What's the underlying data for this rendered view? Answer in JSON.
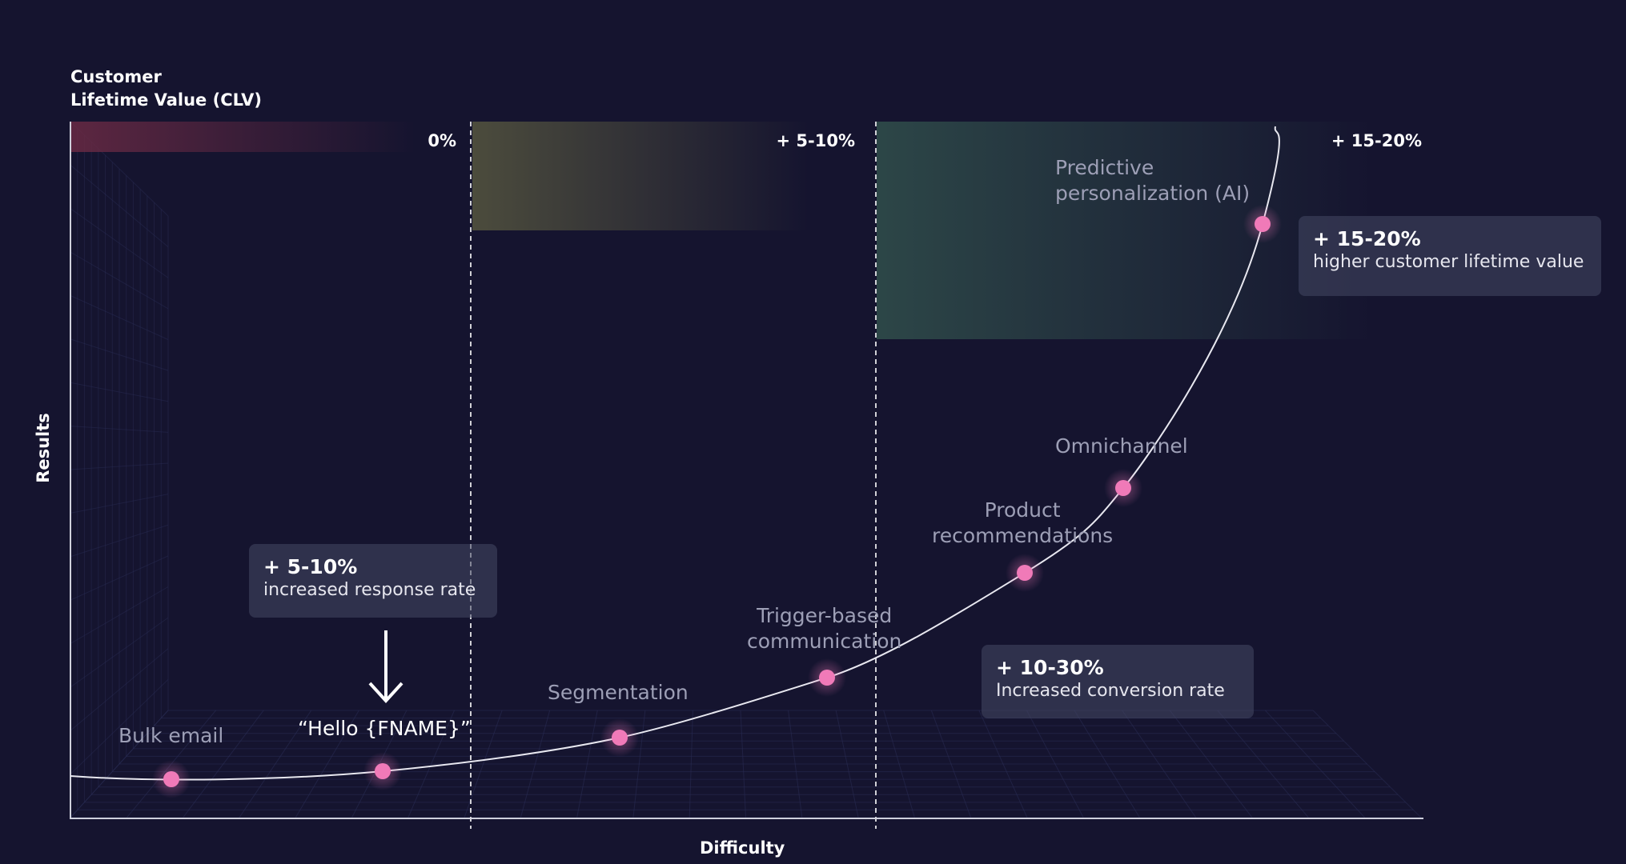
{
  "chart_data": {
    "type": "line",
    "title": "",
    "ylabel_top": "Customer\nLifetime Value (CLV)",
    "ylabel_side": "Results",
    "xlabel": "Difficulty",
    "zones": [
      {
        "label": "0%",
        "color": "#6a2a44"
      },
      {
        "label": "+ 5-10%",
        "color": "#4a4a3e"
      },
      {
        "label": "+ 15-20%",
        "color": "#2e4a48"
      }
    ],
    "points": [
      {
        "name": "Bulk email"
      },
      {
        "name": "“Hello {FNAME}”"
      },
      {
        "name": "Segmentation"
      },
      {
        "name": "Trigger-based\ncommunication"
      },
      {
        "name": "Product\nrecommendations"
      },
      {
        "name": "Omnichannel"
      },
      {
        "name": "Predictive\npersonalization (AI)"
      }
    ],
    "callouts": [
      {
        "big": "+ 5-10%",
        "small": "increased response rate"
      },
      {
        "big": "+ 10-30%",
        "small": "Increased conversion rate"
      },
      {
        "big": "+ 15-20%",
        "small": "higher customer lifetime value"
      }
    ],
    "colors": {
      "background": "#15142f",
      "point": "#f07ab8",
      "curve": "#e8e8f0",
      "grid": "#2a2d55"
    }
  }
}
